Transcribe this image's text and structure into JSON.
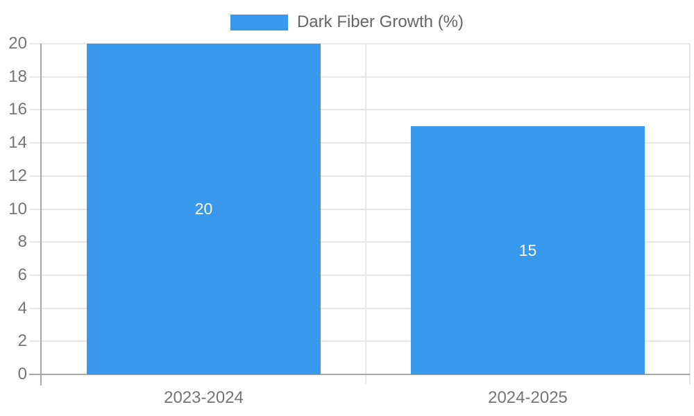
{
  "chart_data": {
    "type": "bar",
    "legend_label": "Dark Fiber Growth (%)",
    "categories": [
      "2023-2024",
      "2024-2025"
    ],
    "values": [
      20,
      15
    ],
    "value_labels": [
      "20",
      "15"
    ],
    "ylim": [
      0,
      20
    ],
    "ytick_step": 2,
    "ytick_labels": [
      "0",
      "2",
      "4",
      "6",
      "8",
      "10",
      "12",
      "14",
      "16",
      "18",
      "20"
    ],
    "legend_position": "top",
    "grid": true,
    "colors": {
      "bar": "#3899ec",
      "grid": "#e6e6e6",
      "axis": "#a6a6a6",
      "tick_label": "#757575",
      "legend_text": "#666666",
      "value_label": "#ffffff",
      "background": "#ffffff"
    }
  }
}
